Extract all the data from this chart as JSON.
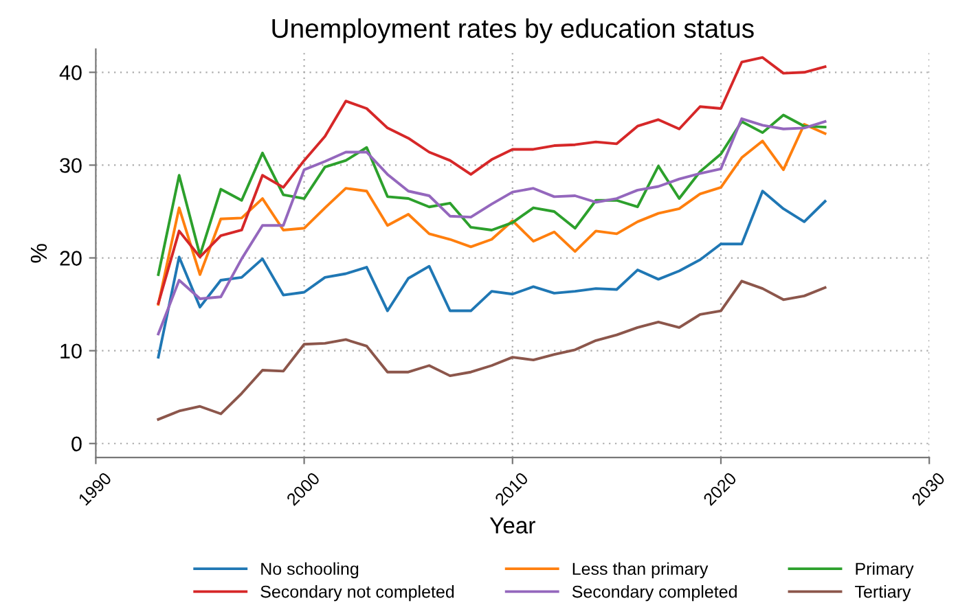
{
  "chart_data": {
    "type": "line",
    "title": "Unemployment rates by education status",
    "xlabel": "Year",
    "ylabel": "%",
    "x": [
      1993,
      1994,
      1995,
      1996,
      1997,
      1998,
      1999,
      2000,
      2001,
      2002,
      2003,
      2004,
      2005,
      2006,
      2007,
      2008,
      2009,
      2010,
      2011,
      2012,
      2013,
      2014,
      2015,
      2016,
      2017,
      2018,
      2019,
      2020,
      2021,
      2022,
      2023,
      2024,
      2025
    ],
    "series": [
      {
        "name": "No schooling",
        "color": "#1f77b4",
        "values": [
          9.3,
          20.1,
          14.7,
          17.6,
          17.9,
          19.9,
          16.0,
          16.3,
          17.9,
          18.3,
          19.0,
          14.3,
          17.8,
          19.1,
          14.3,
          14.3,
          16.4,
          16.1,
          16.9,
          16.2,
          16.4,
          16.7,
          16.6,
          18.7,
          17.7,
          18.6,
          19.8,
          21.5,
          21.5,
          27.2,
          25.3,
          23.9,
          26.1
        ]
      },
      {
        "name": "Less than primary",
        "color": "#ff7f0e",
        "values": [
          15.0,
          25.4,
          18.2,
          24.2,
          24.3,
          26.4,
          23.0,
          23.2,
          25.4,
          27.5,
          27.2,
          23.5,
          24.7,
          22.6,
          22.0,
          21.2,
          22.0,
          24.0,
          21.8,
          22.8,
          20.7,
          22.9,
          22.6,
          23.9,
          24.8,
          25.3,
          26.9,
          27.6,
          30.8,
          32.6,
          29.5,
          34.4,
          33.4
        ]
      },
      {
        "name": "Primary",
        "color": "#2ca02c",
        "values": [
          18.2,
          28.9,
          20.3,
          27.4,
          26.2,
          31.3,
          26.8,
          26.4,
          29.8,
          30.5,
          31.9,
          26.6,
          26.4,
          25.5,
          25.9,
          23.3,
          23.0,
          23.8,
          25.4,
          25.0,
          23.2,
          26.2,
          26.2,
          25.5,
          29.9,
          26.4,
          29.3,
          31.2,
          34.7,
          33.5,
          35.4,
          34.2,
          34.1
        ]
      },
      {
        "name": "Secondary not completed",
        "color": "#d62728",
        "values": [
          15.1,
          22.9,
          20.1,
          22.4,
          23.0,
          28.9,
          27.6,
          30.5,
          33.1,
          36.9,
          36.1,
          34.0,
          32.9,
          31.4,
          30.5,
          29.0,
          30.6,
          31.7,
          31.7,
          32.1,
          32.2,
          32.5,
          32.3,
          34.2,
          34.9,
          33.9,
          36.3,
          36.1,
          41.1,
          41.6,
          39.9,
          40.0,
          40.6
        ]
      },
      {
        "name": "Secondary completed",
        "color": "#9467bd",
        "values": [
          11.8,
          17.6,
          15.6,
          15.8,
          19.9,
          23.5,
          23.5,
          29.5,
          30.4,
          31.4,
          31.4,
          29.0,
          27.2,
          26.7,
          24.5,
          24.4,
          25.8,
          27.1,
          27.5,
          26.6,
          26.7,
          26.0,
          26.4,
          27.3,
          27.7,
          28.5,
          29.1,
          29.6,
          35.0,
          34.3,
          33.9,
          34.0,
          34.7
        ]
      },
      {
        "name": "Tertiary",
        "color": "#8c564b",
        "values": [
          2.6,
          3.5,
          4.0,
          3.2,
          5.4,
          7.9,
          7.8,
          10.7,
          10.8,
          11.2,
          10.5,
          7.7,
          7.7,
          8.4,
          7.3,
          7.7,
          8.4,
          9.3,
          9.0,
          9.6,
          10.1,
          11.1,
          11.7,
          12.5,
          13.1,
          12.5,
          13.9,
          14.3,
          17.5,
          16.7,
          15.5,
          15.9,
          16.8
        ]
      }
    ],
    "xlim": [
      1990,
      2030
    ],
    "xticks": [
      1990,
      2000,
      2010,
      2020,
      2030
    ],
    "ylim": [
      -1.5,
      42.5
    ],
    "yticks": [
      0,
      10,
      20,
      30,
      40
    ],
    "grid": true,
    "legend": "bottom",
    "marker": "none",
    "line_style": "solid"
  }
}
